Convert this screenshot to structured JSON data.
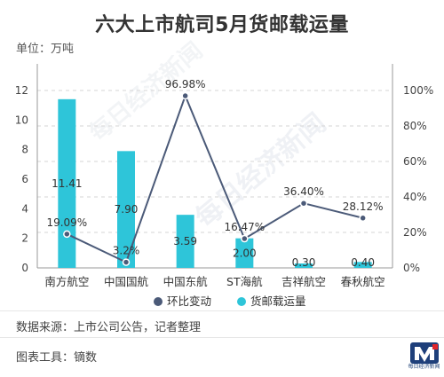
{
  "title": "六大上市航司5月货邮载运量",
  "unit": "单位：万吨",
  "source": "数据来源：上市公司公告，记者整理",
  "tool": "图表工具：镝数",
  "watermark": "每日经济新闻",
  "logo_text": "每日经济新闻",
  "colors": {
    "bar": "#2ec5d9",
    "line": "#4b5a78",
    "grid": "#d5d5d5",
    "axis": "#999999"
  },
  "chart_data": {
    "type": "bar",
    "categories": [
      "南方航空",
      "中国国航",
      "中国东航",
      "ST海航",
      "吉祥航空",
      "春秋航空"
    ],
    "series": [
      {
        "name": "货邮载运量",
        "type": "bar",
        "axis": "left",
        "values": [
          11.41,
          7.9,
          3.59,
          2.0,
          0.3,
          0.4
        ],
        "labels": [
          "11.41",
          "7.90",
          "3.59",
          "2.00",
          "0.30",
          "0.40"
        ]
      },
      {
        "name": "环比变动",
        "type": "line",
        "axis": "right",
        "values": [
          19.09,
          3.2,
          96.98,
          16.47,
          36.4,
          28.12
        ],
        "labels": [
          "19.09%",
          "3.2%",
          "96.98%",
          "16.47%",
          "36.40%",
          "28.12%"
        ]
      }
    ],
    "y_left": {
      "min": 0,
      "max": 12,
      "ticks": [
        "0",
        "2",
        "4",
        "6",
        "8",
        "10",
        "12"
      ]
    },
    "y_right": {
      "min": 0,
      "max": 100,
      "ticks": [
        "0%",
        "20%",
        "40%",
        "60%",
        "80%",
        "100%"
      ]
    },
    "legend": [
      {
        "label": "环比变动",
        "kind": "line"
      },
      {
        "label": "货邮载运量",
        "kind": "bar"
      }
    ],
    "legend_position": "bottom",
    "grid": true
  }
}
